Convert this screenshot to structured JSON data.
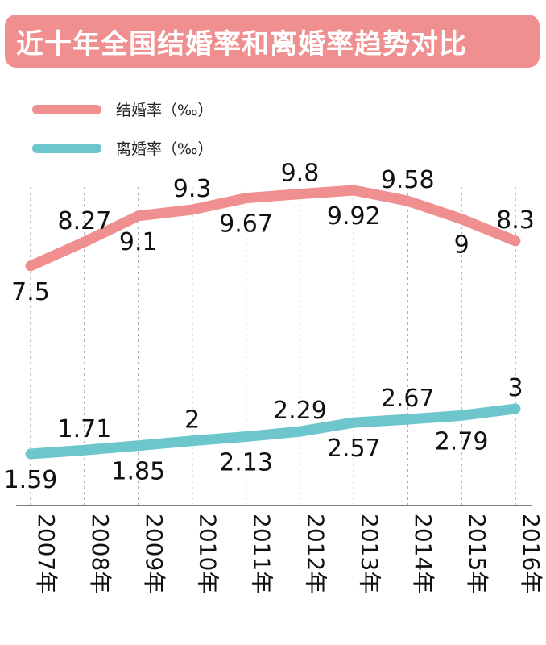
{
  "colors": {
    "title_bg": "#f08f90",
    "marriage": "#ef8f90",
    "divorce": "#6cc6cc",
    "grid": "#9a9a9a",
    "text": "#111111"
  },
  "chart_data": {
    "type": "line",
    "title": "近十年全国结婚率和离婚率趋势对比",
    "categories": [
      "2007年",
      "2008年",
      "2009年",
      "2010年",
      "2011年",
      "2012年",
      "2013年",
      "2014年",
      "2015年",
      "2016年"
    ],
    "series": [
      {
        "name": "结婚率（‰）",
        "values": [
          7.5,
          8.27,
          9.1,
          9.3,
          9.67,
          9.8,
          9.92,
          9.58,
          9,
          8.3
        ],
        "color": "#ef8f90"
      },
      {
        "name": "离婚率（‰）",
        "values": [
          1.59,
          1.71,
          1.85,
          2,
          2.13,
          2.29,
          2.57,
          2.67,
          2.79,
          3
        ],
        "color": "#6cc6cc"
      }
    ],
    "legend_position": "top-left",
    "grid": "vertical dashed lines"
  }
}
